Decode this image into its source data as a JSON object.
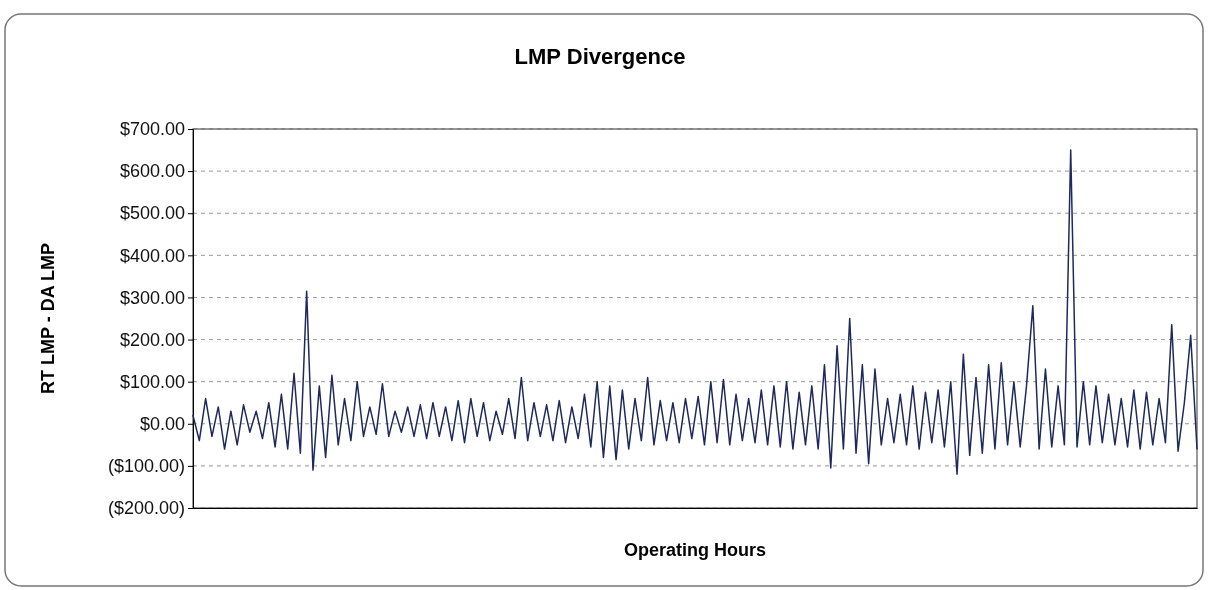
{
  "chart_data": {
    "type": "line",
    "title": "LMP Divergence",
    "xlabel": "Operating Hours",
    "ylabel": "RT LMP - DA LMP",
    "categories": [
      null,
      null,
      null,
      null,
      null,
      null,
      null,
      null,
      null,
      null,
      null,
      null,
      null,
      null,
      null,
      null,
      null,
      null,
      null,
      null,
      null,
      null,
      null,
      null,
      null,
      null,
      null,
      null,
      null,
      null,
      null,
      null,
      null,
      null,
      null,
      null,
      null,
      null,
      null,
      null,
      null,
      null,
      null,
      null,
      null,
      null,
      null,
      null,
      null,
      null,
      null,
      null,
      null,
      null,
      null,
      null,
      null,
      null,
      null,
      null,
      null,
      null,
      null,
      null,
      null,
      null,
      null,
      null,
      null,
      null,
      null,
      null,
      null,
      null,
      null,
      null,
      null,
      null,
      null,
      null,
      null,
      null,
      null,
      null,
      null,
      null,
      null,
      null,
      null,
      null,
      null,
      null,
      null,
      null,
      null,
      null,
      null,
      null,
      null,
      null,
      null,
      null,
      null,
      null,
      null,
      null,
      null,
      null,
      null,
      null,
      null,
      null,
      null,
      null,
      null,
      null,
      null,
      null,
      null,
      null,
      null,
      null,
      null,
      null,
      null,
      null,
      null,
      null,
      null,
      null,
      null,
      null,
      null,
      null,
      null,
      null,
      null,
      null,
      null,
      null,
      null,
      null,
      null,
      null,
      null,
      null,
      null,
      null,
      null,
      null,
      null,
      null,
      null,
      null,
      null,
      null,
      null,
      null,
      null,
      null
    ],
    "series": [
      {
        "color": "#1f2a5c",
        "values": [
          20,
          -40,
          60,
          -30,
          40,
          -60,
          30,
          -50,
          45,
          -20,
          30,
          -35,
          50,
          -55,
          70,
          -60,
          120,
          -70,
          315,
          -110,
          90,
          -80,
          115,
          -50,
          60,
          -40,
          100,
          -30,
          40,
          -25,
          95,
          -30,
          30,
          -20,
          40,
          -30,
          45,
          -35,
          50,
          -30,
          40,
          -40,
          55,
          -45,
          60,
          -30,
          50,
          -40,
          30,
          -25,
          60,
          -35,
          110,
          -40,
          50,
          -30,
          45,
          -40,
          55,
          -45,
          40,
          -35,
          70,
          -55,
          100,
          -80,
          90,
          -85,
          80,
          -60,
          60,
          -40,
          110,
          -50,
          55,
          -40,
          50,
          -45,
          60,
          -35,
          65,
          -50,
          100,
          -45,
          105,
          -50,
          70,
          -40,
          60,
          -45,
          80,
          -50,
          90,
          -55,
          100,
          -60,
          75,
          -50,
          90,
          -60,
          140,
          -105,
          185,
          -60,
          250,
          -70,
          140,
          -95,
          130,
          -50,
          60,
          -45,
          70,
          -50,
          90,
          -60,
          75,
          -45,
          80,
          -55,
          100,
          -120,
          165,
          -75,
          110,
          -70,
          140,
          -60,
          145,
          -50,
          100,
          -55,
          90,
          280,
          -60,
          130,
          -55,
          90,
          -50,
          650,
          -55,
          100,
          -50,
          90,
          -45,
          70,
          -50,
          60,
          -55,
          80,
          -60,
          75,
          -50,
          60,
          -45,
          235,
          -65,
          50,
          210,
          -60
        ]
      }
    ],
    "ylim": [
      -200,
      700
    ],
    "yticks": [
      {
        "value": -200,
        "label": "($200.00)"
      },
      {
        "value": -100,
        "label": "($100.00)"
      },
      {
        "value": 0,
        "label": "$0.00"
      },
      {
        "value": 100,
        "label": "$100.00"
      },
      {
        "value": 200,
        "label": "$200.00"
      },
      {
        "value": 300,
        "label": "$300.00"
      },
      {
        "value": 400,
        "label": "$400.00"
      },
      {
        "value": 500,
        "label": "$500.00"
      },
      {
        "value": 600,
        "label": "$600.00"
      },
      {
        "value": 700,
        "label": "$700.00"
      }
    ],
    "grid": "y",
    "tick_labels": "y",
    "marker": "none",
    "line_style": "solid"
  }
}
